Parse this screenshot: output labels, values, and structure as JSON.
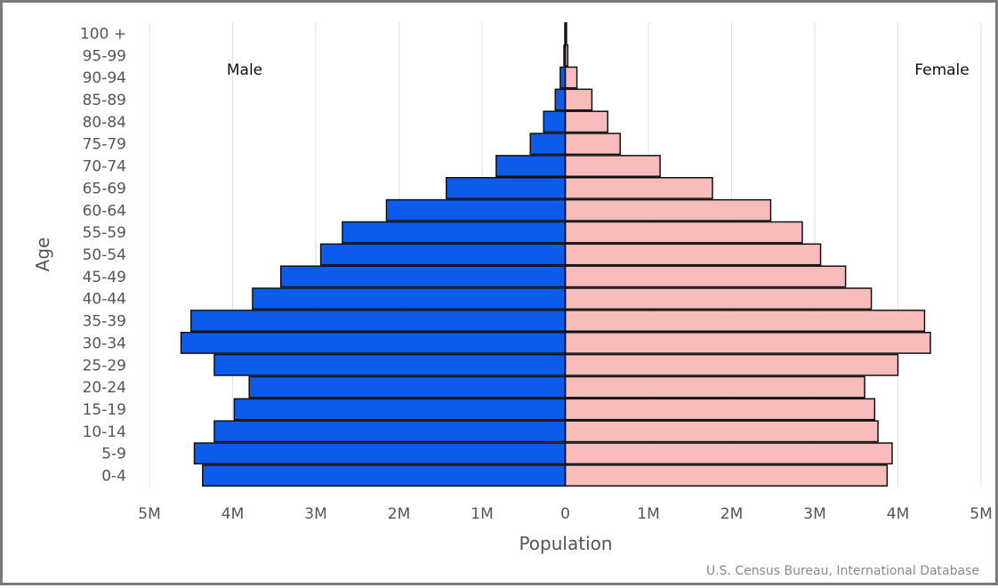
{
  "chart_data": {
    "type": "bar",
    "orientation": "horizontal-diverging",
    "ylabel": "Age",
    "xlabel": "Population",
    "credit": "U.S. Census Bureau, International Database",
    "xlim": [
      -5000000,
      5000000
    ],
    "x_ticks": [
      {
        "value": -5000000,
        "label": "5M"
      },
      {
        "value": -4000000,
        "label": "4M"
      },
      {
        "value": -3000000,
        "label": "3M"
      },
      {
        "value": -2000000,
        "label": "2M"
      },
      {
        "value": -1000000,
        "label": "1M"
      },
      {
        "value": 0,
        "label": "0"
      },
      {
        "value": 1000000,
        "label": "1M"
      },
      {
        "value": 2000000,
        "label": "2M"
      },
      {
        "value": 3000000,
        "label": "3M"
      },
      {
        "value": 4000000,
        "label": "4M"
      },
      {
        "value": 5000000,
        "label": "5M"
      }
    ],
    "categories": [
      "100 +",
      "95-99",
      "90-94",
      "85-89",
      "80-84",
      "75-79",
      "70-74",
      "65-69",
      "60-64",
      "55-59",
      "50-54",
      "45-49",
      "40-44",
      "35-39",
      "30-34",
      "25-29",
      "20-24",
      "15-19",
      "10-14",
      "5-9",
      "0-4"
    ],
    "series": [
      {
        "name": "Male",
        "color": "#0d5bea",
        "values": [
          5000,
          15000,
          60000,
          120000,
          260000,
          420000,
          830000,
          1430000,
          2150000,
          2680000,
          2940000,
          3420000,
          3760000,
          4500000,
          4620000,
          4220000,
          3800000,
          3980000,
          4220000,
          4460000,
          4360000
        ]
      },
      {
        "name": "Female",
        "color": "#f9bcbc",
        "values": [
          15000,
          30000,
          140000,
          320000,
          510000,
          660000,
          1140000,
          1770000,
          2470000,
          2850000,
          3070000,
          3370000,
          3680000,
          4320000,
          4390000,
          4000000,
          3600000,
          3720000,
          3760000,
          3930000,
          3870000
        ]
      }
    ],
    "grid": true
  }
}
